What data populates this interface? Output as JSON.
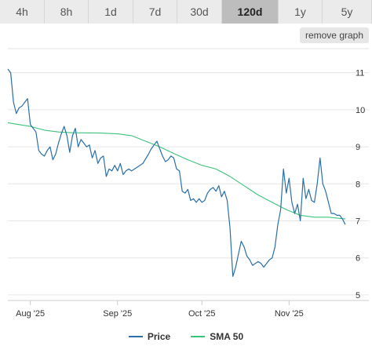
{
  "tabs": [
    {
      "label": "4h",
      "active": false
    },
    {
      "label": "8h",
      "active": false
    },
    {
      "label": "1d",
      "active": false
    },
    {
      "label": "7d",
      "active": false
    },
    {
      "label": "30d",
      "active": false
    },
    {
      "label": "120d",
      "active": true
    },
    {
      "label": "1y",
      "active": false
    },
    {
      "label": "5y",
      "active": false
    }
  ],
  "remove_graph_label": "remove graph",
  "colors": {
    "price": "#2a6fa8",
    "sma": "#3cc37a",
    "grid": "#e6e6e6",
    "axis": "#cccccc",
    "tab_active": "#bdbdbd",
    "tab": "#ebebeb"
  },
  "chart_data": {
    "type": "line",
    "x_axis": {
      "type": "date",
      "range": [
        "2025-07-28",
        "2025-11-25"
      ],
      "ticks": [
        {
          "date": "2025-08-05",
          "label": "Aug '25"
        },
        {
          "date": "2025-09-05",
          "label": "Sep '25"
        },
        {
          "date": "2025-10-05",
          "label": "Oct '25"
        },
        {
          "date": "2025-11-05",
          "label": "Nov '25"
        }
      ]
    },
    "y_axis": {
      "range": [
        4.85,
        11.65
      ],
      "ticks": [
        5,
        6,
        7,
        8,
        9,
        10,
        11
      ],
      "position": "right"
    },
    "grid": true,
    "legend": {
      "position": "bottom"
    },
    "series": [
      {
        "name": "Price",
        "color": "#2a6fa8",
        "points": [
          [
            "2025-07-28",
            11.1
          ],
          [
            "2025-07-29",
            11.0
          ],
          [
            "2025-07-30",
            10.2
          ],
          [
            "2025-07-31",
            9.9
          ],
          [
            "2025-08-01",
            10.05
          ],
          [
            "2025-08-02",
            10.1
          ],
          [
            "2025-08-03",
            10.2
          ],
          [
            "2025-08-04",
            10.3
          ],
          [
            "2025-08-05",
            9.6
          ],
          [
            "2025-08-06",
            9.5
          ],
          [
            "2025-08-07",
            9.4
          ],
          [
            "2025-08-08",
            8.9
          ],
          [
            "2025-08-09",
            8.8
          ],
          [
            "2025-08-10",
            8.75
          ],
          [
            "2025-08-11",
            8.9
          ],
          [
            "2025-08-12",
            9.0
          ],
          [
            "2025-08-13",
            8.65
          ],
          [
            "2025-08-14",
            8.8
          ],
          [
            "2025-08-15",
            9.1
          ],
          [
            "2025-08-16",
            9.35
          ],
          [
            "2025-08-17",
            9.55
          ],
          [
            "2025-08-18",
            9.3
          ],
          [
            "2025-08-19",
            8.85
          ],
          [
            "2025-08-20",
            9.3
          ],
          [
            "2025-08-21",
            9.5
          ],
          [
            "2025-08-22",
            9.0
          ],
          [
            "2025-08-23",
            9.2
          ],
          [
            "2025-08-24",
            9.1
          ],
          [
            "2025-08-25",
            9.0
          ],
          [
            "2025-08-26",
            9.05
          ],
          [
            "2025-08-27",
            8.7
          ],
          [
            "2025-08-28",
            8.9
          ],
          [
            "2025-08-29",
            8.55
          ],
          [
            "2025-08-30",
            8.7
          ],
          [
            "2025-08-31",
            8.75
          ],
          [
            "2025-09-01",
            8.2
          ],
          [
            "2025-09-02",
            8.4
          ],
          [
            "2025-09-03",
            8.35
          ],
          [
            "2025-09-04",
            8.5
          ],
          [
            "2025-09-05",
            8.35
          ],
          [
            "2025-09-06",
            8.55
          ],
          [
            "2025-09-07",
            8.25
          ],
          [
            "2025-09-08",
            8.35
          ],
          [
            "2025-09-09",
            8.4
          ],
          [
            "2025-09-10",
            8.35
          ],
          [
            "2025-09-12",
            8.45
          ],
          [
            "2025-09-14",
            8.55
          ],
          [
            "2025-09-16",
            8.8
          ],
          [
            "2025-09-17",
            8.95
          ],
          [
            "2025-09-18",
            9.05
          ],
          [
            "2025-09-19",
            9.15
          ],
          [
            "2025-09-20",
            8.95
          ],
          [
            "2025-09-21",
            8.75
          ],
          [
            "2025-09-22",
            8.6
          ],
          [
            "2025-09-23",
            8.65
          ],
          [
            "2025-09-24",
            8.75
          ],
          [
            "2025-09-25",
            8.7
          ],
          [
            "2025-09-26",
            8.4
          ],
          [
            "2025-09-27",
            8.35
          ],
          [
            "2025-09-28",
            7.8
          ],
          [
            "2025-09-29",
            7.75
          ],
          [
            "2025-09-30",
            7.85
          ],
          [
            "2025-10-01",
            7.55
          ],
          [
            "2025-10-02",
            7.6
          ],
          [
            "2025-10-03",
            7.5
          ],
          [
            "2025-10-04",
            7.6
          ],
          [
            "2025-10-05",
            7.5
          ],
          [
            "2025-10-06",
            7.55
          ],
          [
            "2025-10-07",
            7.75
          ],
          [
            "2025-10-08",
            7.85
          ],
          [
            "2025-10-09",
            7.9
          ],
          [
            "2025-10-10",
            7.8
          ],
          [
            "2025-10-11",
            7.95
          ],
          [
            "2025-10-12",
            7.65
          ],
          [
            "2025-10-13",
            7.8
          ],
          [
            "2025-10-14",
            7.55
          ],
          [
            "2025-10-15",
            6.8
          ],
          [
            "2025-10-16",
            5.5
          ],
          [
            "2025-10-17",
            5.75
          ],
          [
            "2025-10-18",
            6.1
          ],
          [
            "2025-10-19",
            6.45
          ],
          [
            "2025-10-20",
            6.3
          ],
          [
            "2025-10-21",
            6.05
          ],
          [
            "2025-10-22",
            5.95
          ],
          [
            "2025-10-23",
            5.8
          ],
          [
            "2025-10-24",
            5.85
          ],
          [
            "2025-10-25",
            5.9
          ],
          [
            "2025-10-26",
            5.85
          ],
          [
            "2025-10-27",
            5.75
          ],
          [
            "2025-10-28",
            5.85
          ],
          [
            "2025-10-29",
            5.95
          ],
          [
            "2025-10-30",
            6.0
          ],
          [
            "2025-10-31",
            6.3
          ],
          [
            "2025-11-01",
            6.9
          ],
          [
            "2025-11-02",
            7.3
          ],
          [
            "2025-11-03",
            8.4
          ],
          [
            "2025-11-04",
            7.75
          ],
          [
            "2025-11-05",
            8.15
          ],
          [
            "2025-11-06",
            7.5
          ],
          [
            "2025-11-07",
            7.2
          ],
          [
            "2025-11-08",
            7.45
          ],
          [
            "2025-11-09",
            7.0
          ],
          [
            "2025-11-10",
            8.15
          ],
          [
            "2025-11-11",
            7.6
          ],
          [
            "2025-11-12",
            7.85
          ],
          [
            "2025-11-13",
            7.55
          ],
          [
            "2025-11-14",
            7.5
          ],
          [
            "2025-11-15",
            8.0
          ],
          [
            "2025-11-16",
            8.7
          ],
          [
            "2025-11-17",
            8.0
          ],
          [
            "2025-11-18",
            7.8
          ],
          [
            "2025-11-19",
            7.5
          ],
          [
            "2025-11-20",
            7.2
          ],
          [
            "2025-11-21",
            7.2
          ],
          [
            "2025-11-22",
            7.15
          ],
          [
            "2025-11-23",
            7.15
          ],
          [
            "2025-11-24",
            7.05
          ],
          [
            "2025-11-25",
            6.9
          ]
        ]
      },
      {
        "name": "SMA 50",
        "color": "#3cc37a",
        "points": [
          [
            "2025-07-28",
            9.65
          ],
          [
            "2025-08-01",
            9.6
          ],
          [
            "2025-08-05",
            9.55
          ],
          [
            "2025-08-10",
            9.45
          ],
          [
            "2025-08-15",
            9.4
          ],
          [
            "2025-08-20",
            9.38
          ],
          [
            "2025-08-30",
            9.37
          ],
          [
            "2025-09-05",
            9.35
          ],
          [
            "2025-09-10",
            9.3
          ],
          [
            "2025-09-15",
            9.15
          ],
          [
            "2025-09-20",
            9.0
          ],
          [
            "2025-09-25",
            8.82
          ],
          [
            "2025-09-30",
            8.65
          ],
          [
            "2025-10-05",
            8.5
          ],
          [
            "2025-10-10",
            8.4
          ],
          [
            "2025-10-15",
            8.2
          ],
          [
            "2025-10-20",
            7.95
          ],
          [
            "2025-10-25",
            7.7
          ],
          [
            "2025-10-30",
            7.5
          ],
          [
            "2025-11-04",
            7.3
          ],
          [
            "2025-11-09",
            7.15
          ],
          [
            "2025-11-14",
            7.1
          ],
          [
            "2025-11-19",
            7.1
          ],
          [
            "2025-11-25",
            7.05
          ]
        ]
      }
    ]
  }
}
